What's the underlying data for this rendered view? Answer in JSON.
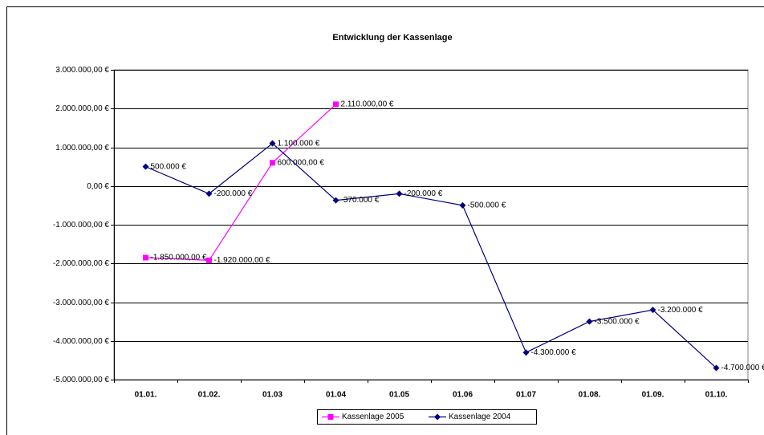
{
  "chart_data": {
    "type": "line",
    "title": "Entwicklung der Kassenlage",
    "categories": [
      "01.01.",
      "01.02.",
      "01.03",
      "01.04",
      "01.05",
      "01.06",
      "01.07",
      "01.08.",
      "01.09.",
      "01.10."
    ],
    "series": [
      {
        "name": "Kassenlage 2005",
        "color": "#ff00ff",
        "marker": "square",
        "values": [
          -1850000,
          -1920000,
          600000,
          2110000,
          null,
          null,
          null,
          null,
          null,
          null
        ],
        "value_labels": [
          "-1.850.000,00 €",
          "-1.920.000,00 €",
          "600.000,00 €",
          "2.110.000,00 €",
          null,
          null,
          null,
          null,
          null,
          null
        ]
      },
      {
        "name": "Kassenlage 2004",
        "color": "#000080",
        "marker": "diamond",
        "values": [
          500000,
          -200000,
          1100000,
          -370000,
          -200000,
          -500000,
          -4300000,
          -3500000,
          -3200000,
          -4700000
        ],
        "value_labels": [
          "500.000 €",
          "-200.000 €",
          "1.100.000 €",
          "-370.000 €",
          "-200.000 €",
          "-500.000 €",
          "-4.300.000 €",
          "-3.500.000 €",
          "-3.200.000 €",
          "-4.700.000 €"
        ]
      }
    ],
    "ylim": [
      -5000000,
      3000000
    ],
    "yticks": [
      {
        "value": -5000000,
        "label": "-5.000.000,00 €"
      },
      {
        "value": -4000000,
        "label": "-4.000.000,00 €"
      },
      {
        "value": -3000000,
        "label": "-3.000.000,00 €"
      },
      {
        "value": -2000000,
        "label": "-2.000.000,00 €"
      },
      {
        "value": -1000000,
        "label": "-1.000.000,00 €"
      },
      {
        "value": 0,
        "label": "0,00 €"
      },
      {
        "value": 1000000,
        "label": "1.000.000,00 €"
      },
      {
        "value": 2000000,
        "label": "2.000.000,00 €"
      },
      {
        "value": 3000000,
        "label": "3.000.000,00 €"
      }
    ],
    "grid": true,
    "legend": "bottom"
  }
}
